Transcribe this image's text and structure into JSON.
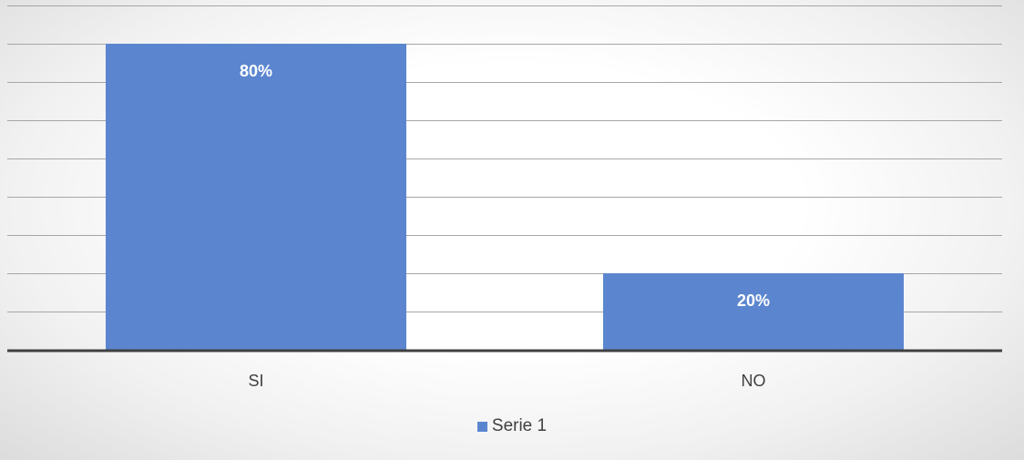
{
  "chart_data": {
    "type": "bar",
    "categories": [
      "SI",
      "NO"
    ],
    "series": [
      {
        "name": "Serie 1",
        "values": [
          80,
          20
        ],
        "data_labels": [
          "80%",
          "20%"
        ]
      }
    ],
    "ylim": [
      0,
      90
    ],
    "grid": true,
    "legend": "bottom",
    "colors": {
      "bar": "#5B86CF",
      "data_label": "#ffffff",
      "gridline": "#A6A6A6",
      "axis": "#404040",
      "text": "#404040"
    }
  }
}
